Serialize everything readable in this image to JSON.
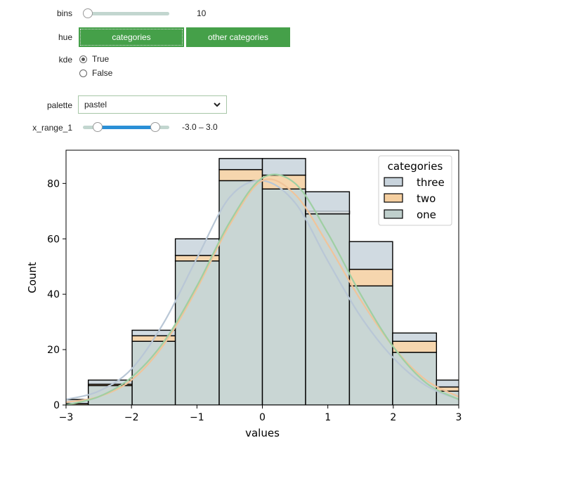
{
  "controls": {
    "bins": {
      "label": "bins",
      "value": 10,
      "min": 1,
      "max": 100,
      "readout": "10"
    },
    "hue": {
      "label": "hue",
      "options": [
        "categories",
        "other categories"
      ],
      "selected": "categories"
    },
    "kde": {
      "label": "kde",
      "options": [
        "True",
        "False"
      ],
      "selected": "True"
    },
    "palette": {
      "label": "palette",
      "value": "pastel"
    },
    "x_range": {
      "label": "x_range_1",
      "low": -3.0,
      "high": 3.0,
      "min": -4.5,
      "max": 4.5,
      "readout": "-3.0 – 3.0"
    }
  },
  "chart_data": {
    "type": "bar",
    "subtype": "stacked-histogram-with-kde",
    "xlabel": "values",
    "ylabel": "Count",
    "xlim": [
      -3,
      3
    ],
    "ylim": [
      0,
      92
    ],
    "xticks": [
      "−3",
      "−2",
      "−1",
      "0",
      "1",
      "2",
      "3"
    ],
    "yticks": [
      "0",
      "20",
      "40",
      "60",
      "80"
    ],
    "bin_edges": [
      -3.32,
      -2.66,
      -1.99,
      -1.33,
      -0.66,
      0.0,
      0.66,
      1.33,
      1.99,
      2.66,
      3.32
    ],
    "legend": {
      "title": "categories",
      "position": "upper-right"
    },
    "series": [
      {
        "name": "three",
        "color": "#c8d3dc",
        "values": [
          1.5,
          1.5,
          2,
          6,
          4,
          6,
          8,
          10,
          3,
          2.5
        ]
      },
      {
        "name": "two",
        "color": "#f5cfa0",
        "values": [
          0.5,
          0.5,
          2,
          2,
          4,
          5,
          -1,
          6,
          4,
          1.5
        ]
      },
      {
        "name": "one",
        "color": "#bfcfcc",
        "values": [
          0,
          7,
          23,
          52,
          81,
          78,
          70,
          43,
          19,
          5
        ]
      }
    ],
    "kde": [
      {
        "name": "three",
        "color": "#b9c7d6",
        "x": [
          -3,
          -2.5,
          -2,
          -1.5,
          -1,
          -0.5,
          0,
          0.5,
          1,
          1.5,
          2,
          2.5,
          3
        ],
        "y": [
          2,
          5,
          13,
          30,
          53,
          75,
          81,
          73,
          52,
          32,
          17,
          7,
          2
        ]
      },
      {
        "name": "two",
        "color": "#f0c49a",
        "x": [
          -3,
          -2.5,
          -2,
          -1.5,
          -1,
          -0.5,
          0,
          0.5,
          1,
          1.5,
          2,
          2.5,
          3
        ],
        "y": [
          1,
          3,
          9,
          22,
          42,
          65,
          81,
          76,
          58,
          38,
          21,
          9,
          3
        ]
      },
      {
        "name": "one",
        "color": "#9fcfa3",
        "x": [
          -3,
          -2.5,
          -2,
          -1.5,
          -1,
          -0.5,
          0,
          0.5,
          1,
          1.5,
          2,
          2.5,
          3
        ],
        "y": [
          0,
          3,
          10,
          23,
          43,
          66,
          82,
          80,
          62,
          40,
          21,
          8,
          2
        ]
      }
    ]
  }
}
